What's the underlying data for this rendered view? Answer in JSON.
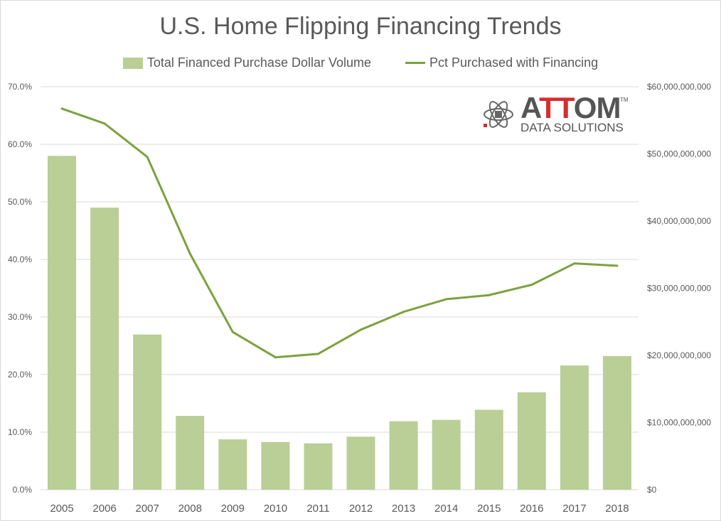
{
  "chart_data": {
    "type": "bar+line",
    "title": "U.S. Home Flipping Financing Trends",
    "categories": [
      "2005",
      "2006",
      "2007",
      "2008",
      "2009",
      "2010",
      "2011",
      "2012",
      "2013",
      "2014",
      "2015",
      "2016",
      "2017",
      "2018"
    ],
    "series": [
      {
        "name": "Total Financed Purchase Dollar Volume",
        "type": "bar",
        "axis": "right",
        "color": "#b9cf96",
        "values": [
          49700000000,
          42000000000,
          23100000000,
          11000000000,
          7500000000,
          7100000000,
          6900000000,
          7900000000,
          10200000000,
          10400000000,
          11900000000,
          14500000000,
          18500000000,
          19900000000
        ]
      },
      {
        "name": "Pct Purchased with Financing",
        "type": "line",
        "axis": "left",
        "color": "#7ba23f",
        "values": [
          66.2,
          63.6,
          57.8,
          41.0,
          27.4,
          23.0,
          23.6,
          27.8,
          30.9,
          33.1,
          33.8,
          35.6,
          39.3,
          38.9
        ]
      }
    ],
    "left_axis": {
      "ylim": [
        0,
        70
      ],
      "ticks": [
        "0.0%",
        "10.0%",
        "20.0%",
        "30.0%",
        "40.0%",
        "50.0%",
        "60.0%",
        "70.0%"
      ]
    },
    "right_axis": {
      "ylim": [
        0,
        60000000000
      ],
      "ticks": [
        "$0",
        "$10,000,000,000",
        "$20,000,000,000",
        "$30,000,000,000",
        "$40,000,000,000",
        "$50,000,000,000",
        "$60,000,000,000"
      ]
    },
    "grid": true,
    "legend_position": "top"
  },
  "logo": {
    "name": "ATTOM",
    "tagline": "DATA SOLUTIONS",
    "tm": "TM"
  }
}
